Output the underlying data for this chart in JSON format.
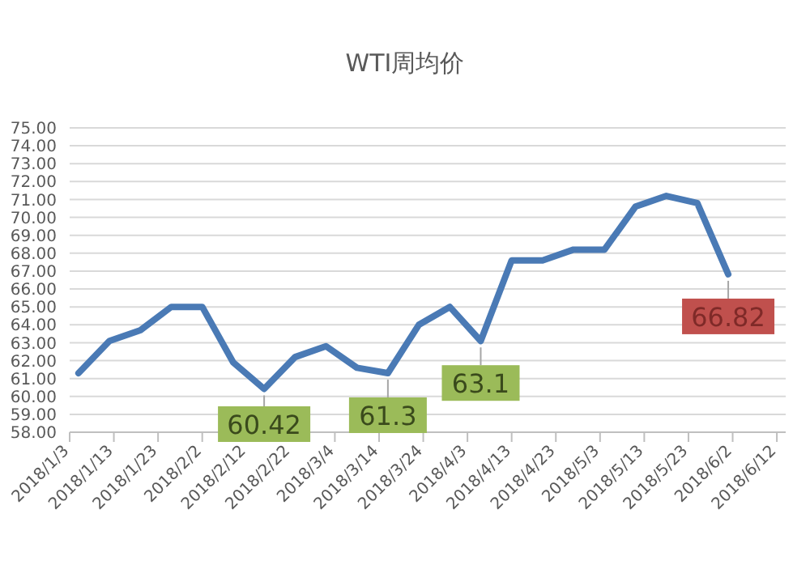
{
  "chart_data": {
    "type": "line",
    "title": "WTI周均价",
    "x": [
      "2018-01-05",
      "2018-01-12",
      "2018-01-19",
      "2018-01-26",
      "2018-02-02",
      "2018-02-09",
      "2018-02-16",
      "2018-02-23",
      "2018-03-02",
      "2018-03-09",
      "2018-03-16",
      "2018-03-23",
      "2018-03-30",
      "2018-04-06",
      "2018-04-13",
      "2018-04-20",
      "2018-04-27",
      "2018-05-04",
      "2018-05-11",
      "2018-05-18",
      "2018-05-25",
      "2018-06-01"
    ],
    "series": [
      {
        "color": "#4a7ab5",
        "values": [
          61.3,
          63.1,
          63.7,
          65.0,
          65.0,
          61.9,
          60.42,
          62.2,
          62.8,
          61.6,
          61.3,
          64.0,
          65.0,
          63.1,
          67.6,
          67.6,
          68.2,
          68.2,
          70.6,
          71.2,
          70.8,
          66.82
        ]
      }
    ],
    "xlim": [
      "2018-01-03",
      "2018-06-14"
    ],
    "xticks": [
      {
        "value": "2018-01-03",
        "label": "2018/1/3"
      },
      {
        "value": "2018-01-13",
        "label": "2018/1/13"
      },
      {
        "value": "2018-01-23",
        "label": "2018/1/23"
      },
      {
        "value": "2018-02-02",
        "label": "2018/2/2"
      },
      {
        "value": "2018-02-12",
        "label": "2018/2/12"
      },
      {
        "value": "2018-02-22",
        "label": "2018/2/22"
      },
      {
        "value": "2018-03-04",
        "label": "2018/3/4"
      },
      {
        "value": "2018-03-14",
        "label": "2018/3/14"
      },
      {
        "value": "2018-03-24",
        "label": "2018/3/24"
      },
      {
        "value": "2018-04-03",
        "label": "2018/4/3"
      },
      {
        "value": "2018-04-13",
        "label": "2018/4/13"
      },
      {
        "value": "2018-04-23",
        "label": "2018/4/23"
      },
      {
        "value": "2018-05-03",
        "label": "2018/5/3"
      },
      {
        "value": "2018-05-13",
        "label": "2018/5/13"
      },
      {
        "value": "2018-05-23",
        "label": "2018/5/23"
      },
      {
        "value": "2018-06-02",
        "label": "2018/6/2"
      },
      {
        "value": "2018-06-12",
        "label": "2018/6/12"
      }
    ],
    "ylim": [
      58,
      75
    ],
    "yticks": [
      {
        "value": 58,
        "label": "58.00"
      },
      {
        "value": 59,
        "label": "59.00"
      },
      {
        "value": 60,
        "label": "60.00"
      },
      {
        "value": 61,
        "label": "61.00"
      },
      {
        "value": 62,
        "label": "62.00"
      },
      {
        "value": 63,
        "label": "63.00"
      },
      {
        "value": 64,
        "label": "64.00"
      },
      {
        "value": 65,
        "label": "65.00"
      },
      {
        "value": 66,
        "label": "66.00"
      },
      {
        "value": 67,
        "label": "67.00"
      },
      {
        "value": 68,
        "label": "68.00"
      },
      {
        "value": 69,
        "label": "69.00"
      },
      {
        "value": 70,
        "label": "70.00"
      },
      {
        "value": 71,
        "label": "71.00"
      },
      {
        "value": 72,
        "label": "72.00"
      },
      {
        "value": 73,
        "label": "73.00"
      },
      {
        "value": 74,
        "label": "74.00"
      },
      {
        "value": 75,
        "label": "75.00"
      }
    ],
    "grid": "y",
    "annotations": [
      {
        "text": "60.42",
        "x": "2018-02-16",
        "y": 60.42
      },
      {
        "text": "61.3",
        "x": "2018-03-16",
        "y": 61.3
      },
      {
        "text": "63.1",
        "x": "2018-04-06",
        "y": 63.1
      },
      {
        "text": "66.82",
        "x": "2018-06-01",
        "y": 66.82
      }
    ]
  }
}
